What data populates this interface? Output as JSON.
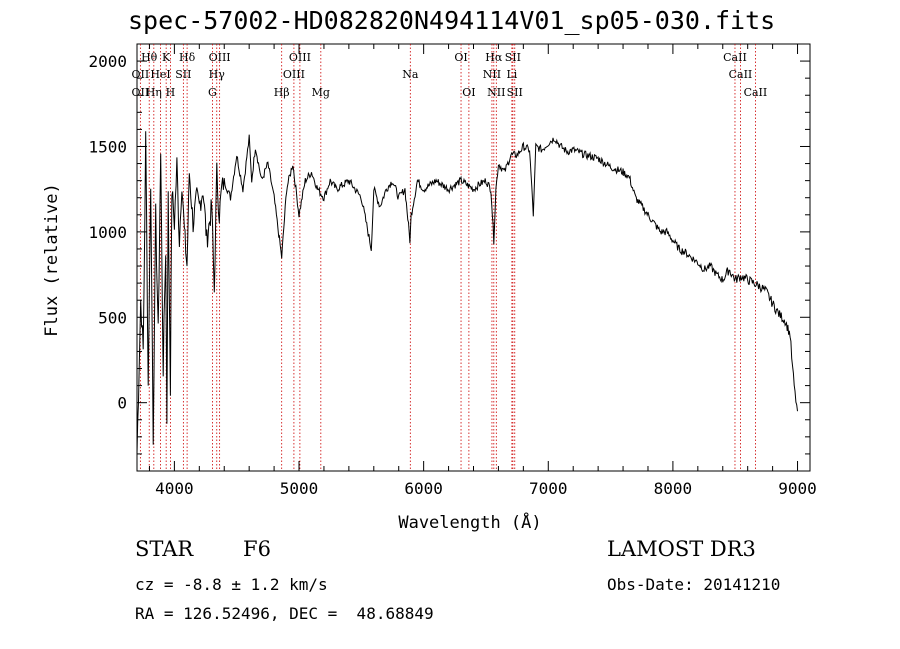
{
  "chart_data": {
    "type": "line",
    "title": "spec-57002-HD082820N494114V01_sp05-030.fits",
    "xlabel": "Wavelength (Å)",
    "ylabel": "Flux (relative)",
    "xlim": [
      3700,
      9100
    ],
    "ylim": [
      -400,
      2100
    ],
    "xticks": [
      4000,
      5000,
      6000,
      7000,
      8000,
      9000
    ],
    "yticks": [
      0,
      500,
      1000,
      1500,
      2000
    ],
    "series": [
      {
        "name": "spectrum",
        "x": [
          3700,
          3730,
          3750,
          3770,
          3790,
          3810,
          3830,
          3850,
          3870,
          3890,
          3910,
          3930,
          3940,
          3950,
          3968,
          3980,
          4000,
          4020,
          4040,
          4060,
          4080,
          4101,
          4120,
          4150,
          4180,
          4200,
          4230,
          4260,
          4300,
          4320,
          4340,
          4360,
          4380,
          4400,
          4450,
          4500,
          4550,
          4600,
          4620,
          4650,
          4700,
          4750,
          4800,
          4861,
          4900,
          4950,
          5000,
          5050,
          5100,
          5150,
          5200,
          5250,
          5300,
          5400,
          5500,
          5580,
          5600,
          5650,
          5700,
          5750,
          5800,
          5850,
          5890,
          5900,
          5950,
          6000,
          6100,
          6200,
          6300,
          6400,
          6450,
          6500,
          6540,
          6563,
          6580,
          6600,
          6650,
          6700,
          6750,
          6800,
          6850,
          6880,
          6900,
          6950,
          7000,
          7050,
          7100,
          7150,
          7200,
          7300,
          7400,
          7500,
          7600,
          7650,
          7700,
          7750,
          7800,
          7850,
          7900,
          7950,
          8000,
          8050,
          8100,
          8150,
          8200,
          8250,
          8300,
          8350,
          8400,
          8450,
          8500,
          8550,
          8600,
          8650,
          8700,
          8750,
          8800,
          8850,
          8900,
          8940,
          8960,
          8980,
          9000
        ],
        "values": [
          -300,
          600,
          300,
          1550,
          100,
          1300,
          -200,
          1100,
          400,
          1450,
          200,
          900,
          -100,
          1200,
          100,
          1250,
          1050,
          1400,
          950,
          1300,
          1000,
          800,
          1350,
          1050,
          1200,
          1150,
          1250,
          950,
          1150,
          650,
          1350,
          1100,
          1250,
          1300,
          1200,
          1450,
          1250,
          1550,
          1300,
          1500,
          1300,
          1400,
          1200,
          850,
          1250,
          1400,
          1100,
          1300,
          1350,
          1250,
          1200,
          1300,
          1250,
          1300,
          1200,
          900,
          1250,
          1150,
          1250,
          1300,
          1200,
          1250,
          950,
          1100,
          1300,
          1250,
          1300,
          1250,
          1300,
          1250,
          1280,
          1300,
          1250,
          950,
          1250,
          1400,
          1350,
          1450,
          1450,
          1500,
          1480,
          1100,
          1500,
          1480,
          1520,
          1550,
          1500,
          1470,
          1480,
          1450,
          1430,
          1380,
          1350,
          1320,
          1200,
          1150,
          1100,
          1050,
          1000,
          1000,
          950,
          900,
          880,
          850,
          820,
          780,
          800,
          750,
          720,
          780,
          720,
          740,
          720,
          700,
          680,
          650,
          580,
          520,
          480,
          400,
          200,
          50,
          -50
        ]
      }
    ],
    "spectral_lines": [
      {
        "label": "Hθ",
        "wavelength": 3798,
        "row": 1
      },
      {
        "label": "K",
        "wavelength": 3934,
        "row": 1
      },
      {
        "label": "Hδ",
        "wavelength": 4102,
        "row": 1
      },
      {
        "label": "OIII",
        "wavelength": 4363,
        "row": 1
      },
      {
        "label": "OIII",
        "wavelength": 5007,
        "row": 1
      },
      {
        "label": "OI",
        "wavelength": 6300,
        "row": 1
      },
      {
        "label": "Hα",
        "wavelength": 6563,
        "row": 1
      },
      {
        "label": "SII",
        "wavelength": 6716,
        "row": 1
      },
      {
        "label": "CaII",
        "wavelength": 8498,
        "row": 1
      },
      {
        "label": "OII",
        "wavelength": 3727,
        "row": 2
      },
      {
        "label": "HeI",
        "wavelength": 3889,
        "row": 2
      },
      {
        "label": "SII",
        "wavelength": 4072,
        "row": 2
      },
      {
        "label": "Hγ",
        "wavelength": 4340,
        "row": 2
      },
      {
        "label": "OIII",
        "wavelength": 4959,
        "row": 2
      },
      {
        "label": "Na",
        "wavelength": 5893,
        "row": 2
      },
      {
        "label": "NII",
        "wavelength": 6548,
        "row": 2
      },
      {
        "label": "Li",
        "wavelength": 6708,
        "row": 2
      },
      {
        "label": "CaII",
        "wavelength": 8542,
        "row": 2
      },
      {
        "label": "OII",
        "wavelength": 3727,
        "row": 3
      },
      {
        "label": "Hη",
        "wavelength": 3835,
        "row": 3
      },
      {
        "label": "H",
        "wavelength": 3968,
        "row": 3
      },
      {
        "label": "G",
        "wavelength": 4305,
        "row": 3
      },
      {
        "label": "Hβ",
        "wavelength": 4861,
        "row": 3
      },
      {
        "label": "Mg",
        "wavelength": 5175,
        "row": 3
      },
      {
        "label": "OI",
        "wavelength": 6363,
        "row": 3
      },
      {
        "label": "NII",
        "wavelength": 6583,
        "row": 3
      },
      {
        "label": "SII",
        "wavelength": 6731,
        "row": 3
      },
      {
        "label": "CaII",
        "wavelength": 8662,
        "row": 3
      }
    ]
  },
  "info": {
    "object_class": "STAR",
    "subclass": "F6",
    "survey": "LAMOST DR3",
    "cz": "cz = -8.8 ± 1.2 km/s",
    "obs_date": "Obs-Date: 20141210",
    "radec": "RA = 126.52496, DEC =  48.68849"
  },
  "colors": {
    "spectrum": "#000000",
    "line_marker": "#cc0000",
    "axis": "#000000"
  }
}
